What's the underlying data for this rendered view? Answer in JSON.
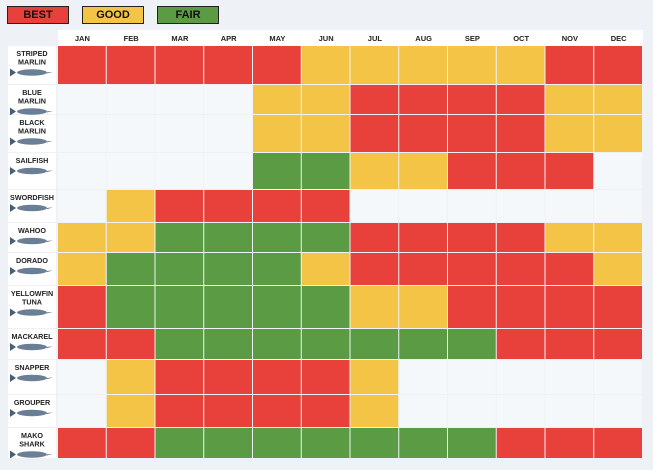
{
  "legend": [
    {
      "label": "BEST",
      "color": "#e8403a"
    },
    {
      "label": "GOOD",
      "color": "#f4c447"
    },
    {
      "label": "FAIR",
      "color": "#5a9b44"
    }
  ],
  "colors": {
    "B": "#e8403a",
    "G": "#f4c447",
    "F": "#5a9b44",
    "_": "#f5f8fb"
  },
  "chart_data": {
    "type": "heatmap",
    "categories": [
      "JAN",
      "FEB",
      "MAR",
      "APR",
      "MAY",
      "JUN",
      "JUL",
      "AUG",
      "SEP",
      "OCT",
      "NOV",
      "DEC"
    ],
    "rows": [
      {
        "label": "STRIPED MARLIN",
        "values": [
          "BEST",
          "BEST",
          "BEST",
          "BEST",
          "BEST",
          "GOOD",
          "GOOD",
          "GOOD",
          "GOOD",
          "GOOD",
          "BEST",
          "BEST"
        ]
      },
      {
        "label": "BLUE MARLIN",
        "values": [
          "",
          "",
          "",
          "",
          "GOOD",
          "GOOD",
          "BEST",
          "BEST",
          "BEST",
          "BEST",
          "GOOD",
          "GOOD"
        ]
      },
      {
        "label": "BLACK MARLIN",
        "values": [
          "",
          "",
          "",
          "",
          "GOOD",
          "GOOD",
          "BEST",
          "BEST",
          "BEST",
          "BEST",
          "GOOD",
          "GOOD"
        ]
      },
      {
        "label": "SAILFISH",
        "values": [
          "",
          "",
          "",
          "",
          "FAIR",
          "FAIR",
          "GOOD",
          "GOOD",
          "BEST",
          "BEST",
          "BEST",
          ""
        ]
      },
      {
        "label": "SWORDFISH",
        "values": [
          "",
          "GOOD",
          "BEST",
          "BEST",
          "BEST",
          "BEST",
          "",
          "",
          "",
          "",
          "",
          ""
        ]
      },
      {
        "label": "WAHOO",
        "values": [
          "GOOD",
          "GOOD",
          "FAIR",
          "FAIR",
          "FAIR",
          "FAIR",
          "BEST",
          "BEST",
          "BEST",
          "BEST",
          "GOOD",
          "GOOD"
        ]
      },
      {
        "label": "DORADO",
        "values": [
          "GOOD",
          "FAIR",
          "FAIR",
          "FAIR",
          "FAIR",
          "GOOD",
          "BEST",
          "BEST",
          "BEST",
          "BEST",
          "BEST",
          "GOOD"
        ]
      },
      {
        "label": "YELLOWFIN TUNA",
        "values": [
          "BEST",
          "FAIR",
          "FAIR",
          "FAIR",
          "FAIR",
          "FAIR",
          "GOOD",
          "GOOD",
          "BEST",
          "BEST",
          "BEST",
          "BEST"
        ]
      },
      {
        "label": "MACKAREL",
        "values": [
          "BEST",
          "BEST",
          "FAIR",
          "FAIR",
          "FAIR",
          "FAIR",
          "FAIR",
          "FAIR",
          "FAIR",
          "BEST",
          "BEST",
          "BEST"
        ]
      },
      {
        "label": "SNAPPER",
        "values": [
          "",
          "GOOD",
          "BEST",
          "BEST",
          "BEST",
          "BEST",
          "GOOD",
          "",
          "",
          "",
          "",
          ""
        ]
      },
      {
        "label": "GROUPER",
        "values": [
          "",
          "GOOD",
          "BEST",
          "BEST",
          "BEST",
          "BEST",
          "GOOD",
          "",
          "",
          "",
          "",
          ""
        ]
      },
      {
        "label": "MAKO SHARK",
        "values": [
          "BEST",
          "BEST",
          "FAIR",
          "FAIR",
          "FAIR",
          "FAIR",
          "FAIR",
          "FAIR",
          "FAIR",
          "BEST",
          "BEST",
          "BEST"
        ]
      }
    ]
  }
}
